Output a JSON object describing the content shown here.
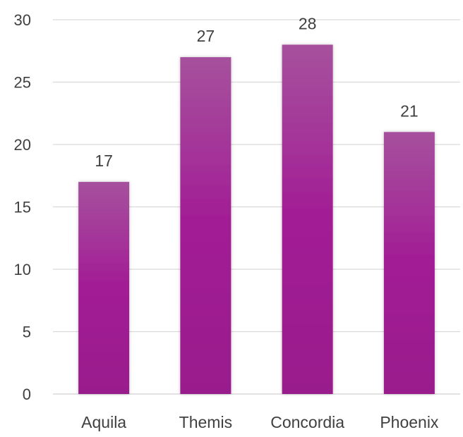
{
  "chart_data": {
    "type": "bar",
    "categories": [
      "Aquila",
      "Themis",
      "Concordia",
      "Phoenix"
    ],
    "values": [
      17,
      27,
      28,
      21
    ],
    "data_labels": [
      "17",
      "27",
      "28",
      "21"
    ],
    "ylim": [
      0,
      30
    ],
    "yticks": [
      0,
      5,
      10,
      15,
      20,
      25,
      30
    ],
    "ytick_labels": [
      "0",
      "5",
      "10",
      "15",
      "20",
      "25",
      "30"
    ],
    "grid": true,
    "legend": "none",
    "colors": {
      "bar_top": "#A6519D",
      "bar_bottom": "#991A8C",
      "bar_mid": "#A21C95",
      "grid": "#D9D9D9",
      "text": "#404040"
    }
  }
}
